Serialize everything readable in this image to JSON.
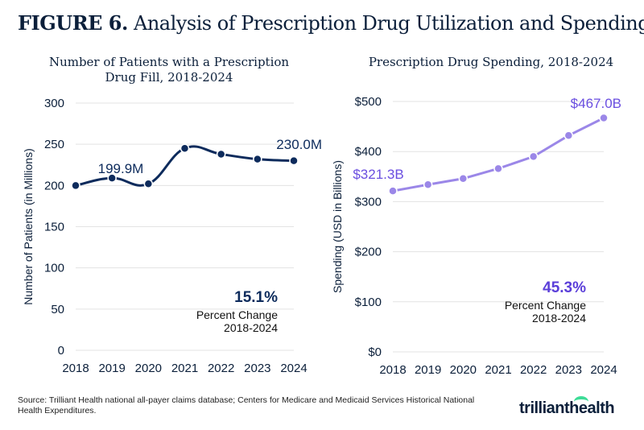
{
  "figure_label": "FIGURE 6.",
  "figure_title": "Analysis of Prescription Drug Utilization and Spending",
  "chart_data": [
    {
      "type": "line",
      "title": "Number of Patients with a Prescription Drug Fill, 2018-2024",
      "title_lines": [
        "Number of Patients with a Prescription",
        "Drug Fill, 2018-2024"
      ],
      "ylabel": "Number of Patients (in Millions)",
      "xlabel": "",
      "x": [
        "2018",
        "2019",
        "2020",
        "2021",
        "2022",
        "2023",
        "2024"
      ],
      "values": [
        199.9,
        209,
        202,
        245,
        238,
        232,
        230.0
      ],
      "ylim": [
        0,
        300
      ],
      "yticks": [
        0,
        50,
        100,
        150,
        200,
        250,
        300
      ],
      "ytick_labels": [
        "0",
        "50",
        "100",
        "150",
        "200",
        "250",
        "300"
      ],
      "grid": true,
      "color": "#0d2b5c",
      "smooth": true,
      "annotations": {
        "start": "199.9M",
        "end": "230.0M",
        "change_value": "15.1%",
        "change_label": "Percent Change",
        "change_period": "2018-2024"
      }
    },
    {
      "type": "line",
      "title": "Prescription Drug Spending, 2018-2024",
      "title_lines": [
        "Prescription Drug Spending, 2018-2024"
      ],
      "ylabel": "Spending (USD in Billions)",
      "xlabel": "",
      "x": [
        "2018",
        "2019",
        "2020",
        "2021",
        "2022",
        "2023",
        "2024"
      ],
      "values": [
        321.3,
        334,
        346,
        366,
        390,
        432,
        467.0
      ],
      "ylim": [
        0,
        500
      ],
      "yticks": [
        0,
        100,
        200,
        300,
        400,
        500
      ],
      "ytick_labels": [
        "$0",
        "$100",
        "$200",
        "$300",
        "$400",
        "$500"
      ],
      "grid": true,
      "color": "#9b87e8",
      "label_color": "#6a4ee0",
      "smooth": false,
      "annotations": {
        "start": "$321.3B",
        "end": "$467.0B",
        "change_value": "45.3%",
        "change_label": "Percent Change",
        "change_period": "2018-2024"
      }
    }
  ],
  "source": "Source: Trilliant Health national all-payer claims database; Centers for Medicare and Medicaid Services Historical National Health Expenditures.",
  "logo": "trilliant health"
}
